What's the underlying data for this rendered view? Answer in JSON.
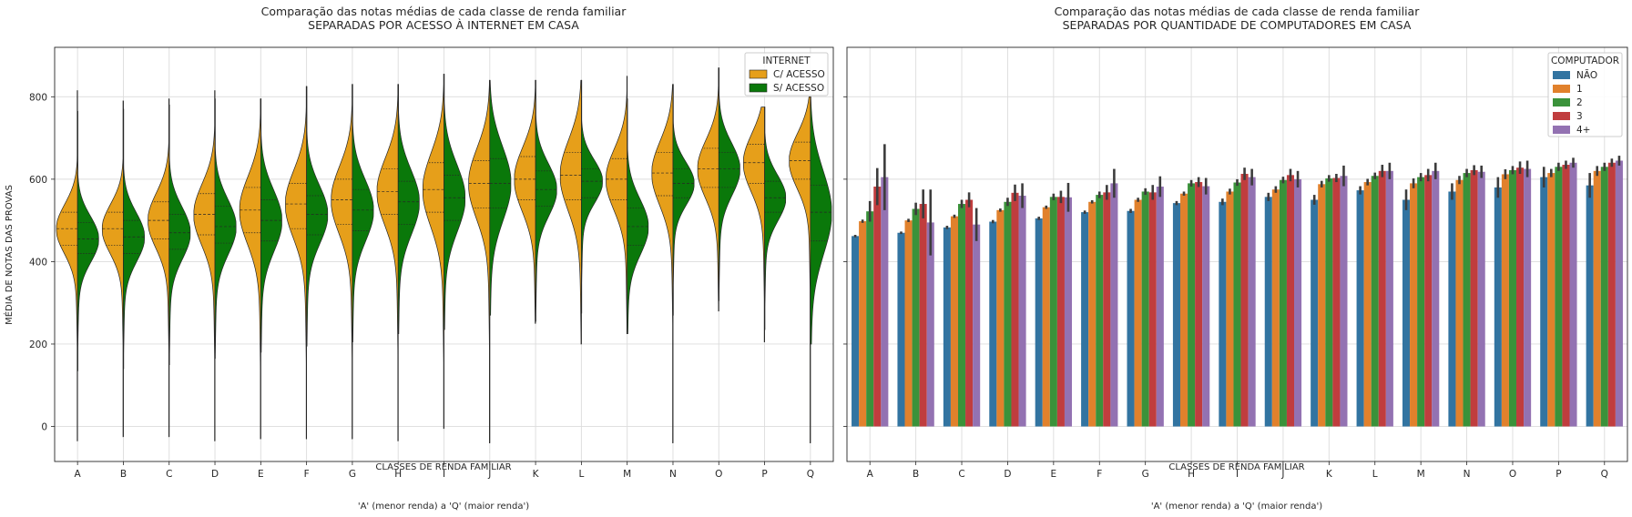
{
  "chart_data": [
    {
      "type": "violin",
      "title": "Comparação das notas médias de cada classe de renda familiar",
      "subtitle": "SEPARADAS POR ACESSO À INTERNET EM CASA",
      "xlabel": "CLASSES DE RENDA FAMILIAR",
      "xlabel2": "'A' (menor renda) a 'Q' (maior renda')",
      "ylabel": "MÉDIA DE NOTAS DAS PROVAS",
      "ylim": [
        -85,
        920
      ],
      "yticks": [
        0,
        200,
        400,
        600,
        800
      ],
      "grid": true,
      "legend": {
        "title": "INTERNET",
        "placement": "top-right"
      },
      "categories": [
        "A",
        "B",
        "C",
        "D",
        "E",
        "F",
        "G",
        "H",
        "I",
        "J",
        "K",
        "L",
        "M",
        "N",
        "O",
        "P",
        "Q"
      ],
      "series": [
        {
          "name": "C/ ACESSO",
          "color": "#e69f1a",
          "q1": [
            440,
            440,
            455,
            465,
            470,
            480,
            490,
            515,
            520,
            530,
            550,
            550,
            550,
            560,
            580,
            590,
            600
          ],
          "median": [
            480,
            480,
            500,
            515,
            525,
            540,
            550,
            570,
            575,
            590,
            600,
            610,
            600,
            615,
            625,
            640,
            645
          ],
          "q3": [
            520,
            520,
            545,
            565,
            580,
            590,
            600,
            625,
            640,
            645,
            655,
            665,
            650,
            665,
            675,
            685,
            690
          ],
          "min": [
            -35,
            -25,
            -25,
            -35,
            -30,
            -30,
            -30,
            -35,
            -5,
            -40,
            250,
            200,
            225,
            -40,
            280,
            205,
            -40
          ],
          "max": [
            815,
            790,
            795,
            815,
            795,
            825,
            830,
            830,
            855,
            840,
            840,
            840,
            850,
            830,
            870,
            775,
            800
          ]
        },
        {
          "name": "S/ ACESSO",
          "color": "#0a780a",
          "q1": [
            420,
            420,
            430,
            445,
            450,
            465,
            475,
            490,
            500,
            530,
            535,
            555,
            440,
            555,
            580,
            520,
            450
          ],
          "median": [
            455,
            460,
            470,
            485,
            500,
            515,
            525,
            545,
            555,
            590,
            575,
            595,
            485,
            590,
            625,
            555,
            520
          ],
          "q3": [
            495,
            500,
            515,
            535,
            550,
            560,
            575,
            595,
            610,
            650,
            620,
            625,
            530,
            625,
            665,
            595,
            585
          ],
          "min": [],
          "max": []
        }
      ]
    },
    {
      "type": "bar",
      "title": "Comparação das notas médias de cada classe de renda familiar",
      "subtitle": "SEPARADAS POR QUANTIDADE DE COMPUTADORES EM CASA",
      "xlabel": "CLASSES DE RENDA FAMILIAR",
      "xlabel2": "'A' (menor renda) a 'Q' (maior renda')",
      "ylim": [
        -85,
        920
      ],
      "grid": true,
      "legend": {
        "title": "COMPUTADOR",
        "placement": "top-right"
      },
      "categories": [
        "A",
        "B",
        "C",
        "D",
        "E",
        "F",
        "G",
        "H",
        "I",
        "J",
        "K",
        "L",
        "M",
        "N",
        "O",
        "P",
        "Q"
      ],
      "series": [
        {
          "name": "NÃO",
          "color": "#3274a1",
          "values": [
            462,
            470,
            483,
            497,
            505,
            520,
            523,
            542,
            545,
            557,
            550,
            573,
            550,
            570,
            580,
            605,
            585
          ],
          "err": [
            3,
            3,
            4,
            4,
            4,
            4,
            5,
            5,
            8,
            10,
            12,
            10,
            25,
            20,
            25,
            25,
            30
          ]
        },
        {
          "name": "1",
          "color": "#e1812c",
          "values": [
            498,
            500,
            510,
            525,
            532,
            545,
            550,
            565,
            570,
            575,
            588,
            593,
            590,
            598,
            612,
            615,
            620
          ],
          "err": [
            4,
            4,
            4,
            4,
            4,
            4,
            5,
            5,
            7,
            8,
            8,
            8,
            12,
            10,
            12,
            10,
            12
          ]
        },
        {
          "name": "2",
          "color": "#3a923a",
          "values": [
            522,
            528,
            540,
            545,
            557,
            562,
            570,
            590,
            592,
            598,
            602,
            608,
            605,
            615,
            622,
            630,
            630
          ],
          "err": [
            25,
            15,
            10,
            10,
            8,
            8,
            8,
            8,
            8,
            8,
            8,
            8,
            10,
            10,
            10,
            10,
            10
          ]
        },
        {
          "name": "3",
          "color": "#c03d3e",
          "values": [
            582,
            540,
            550,
            567,
            557,
            568,
            568,
            593,
            613,
            610,
            603,
            620,
            610,
            622,
            628,
            635,
            640
          ],
          "err": [
            45,
            35,
            18,
            20,
            15,
            18,
            18,
            12,
            15,
            15,
            10,
            15,
            15,
            12,
            15,
            10,
            10
          ]
        },
        {
          "name": "4+",
          "color": "#9372b2",
          "values": [
            605,
            495,
            490,
            560,
            556,
            590,
            582,
            583,
            605,
            600,
            608,
            620,
            620,
            618,
            625,
            640,
            645
          ],
          "err": [
            80,
            80,
            40,
            30,
            35,
            35,
            25,
            20,
            20,
            20,
            25,
            20,
            20,
            15,
            20,
            12,
            12
          ]
        }
      ]
    }
  ]
}
